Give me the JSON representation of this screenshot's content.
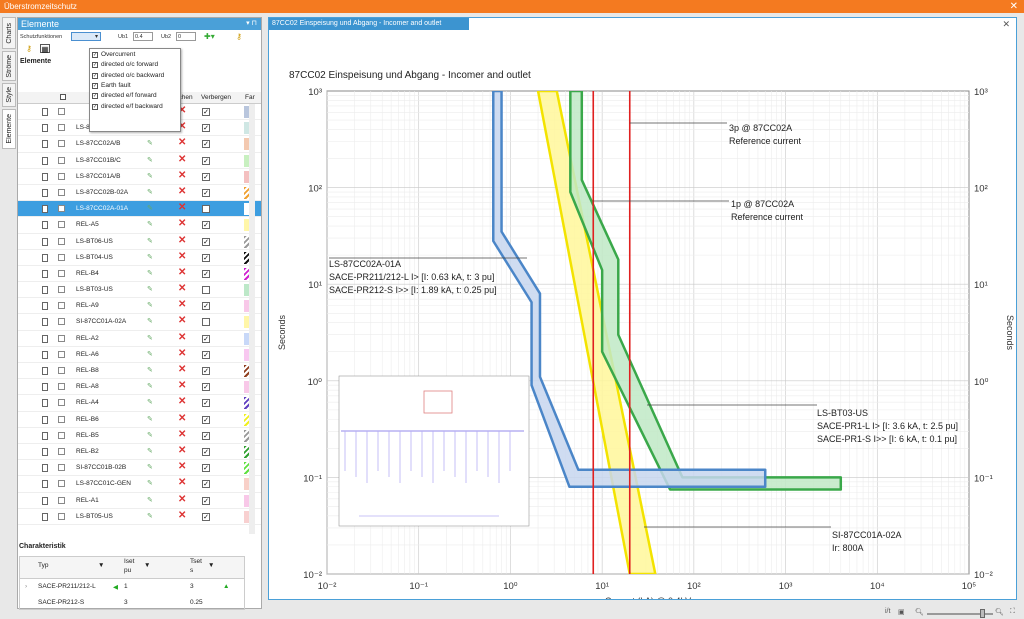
{
  "window": {
    "title": "Überstromzeitschutz"
  },
  "vtabs": [
    "Charts",
    "Ströme",
    "Style",
    "Elemente"
  ],
  "left": {
    "header": "Elemente",
    "schutz_label": "Schutzfunktionen",
    "ub1_label": "Ub1",
    "ub1_value": "0.4",
    "ub2_label": "Ub2",
    "ub2_value": "0",
    "section": "Elemente",
    "dropdown": [
      {
        "label": "Overcurrent",
        "checked": true
      },
      {
        "label": "directed o/c forward",
        "checked": true
      },
      {
        "label": "directed o/c backward",
        "checked": true
      },
      {
        "label": "Earth fault",
        "checked": true
      },
      {
        "label": "directed e/f forward",
        "checked": true
      },
      {
        "label": "directed e/f backward",
        "checked": true
      }
    ],
    "columns": {
      "loeschen": "Löschen",
      "verbergen": "Verbergen",
      "farbe": "Far"
    },
    "rows": [
      {
        "name": "",
        "hidden": true,
        "color": "#b9c6dd",
        "icon": "plug-icon"
      },
      {
        "name": "LS-87CC03A/B",
        "hidden": true,
        "color": "#cfe7e4"
      },
      {
        "name": "LS-87CC02A/B",
        "hidden": true,
        "color": "#f3c9b0"
      },
      {
        "name": "LS-87CC01B/C",
        "hidden": true,
        "color": "#c8f0c0"
      },
      {
        "name": "LS-87CC01A/B",
        "hidden": true,
        "color": "#f4c0c0"
      },
      {
        "name": "LS-87CC02B-02A",
        "hidden": true,
        "color": "hatch-orange"
      },
      {
        "name": "LS-87CC02A-01A",
        "hidden": false,
        "color": "#ffffff",
        "selected": true
      },
      {
        "name": "REL-A5",
        "hidden": true,
        "color": "#fff6a8"
      },
      {
        "name": "LS-BT06-US",
        "hidden": true,
        "color": "hatch-grey"
      },
      {
        "name": "LS-BT04-US",
        "hidden": true,
        "color": "hatch-black"
      },
      {
        "name": "REL-B4",
        "hidden": true,
        "color": "hatch-magenta"
      },
      {
        "name": "LS-BT03-US",
        "hidden": false,
        "color": "#bde8c8"
      },
      {
        "name": "REL-A9",
        "hidden": true,
        "color": "#f8c8e8"
      },
      {
        "name": "SI-87CC01A-02A",
        "hidden": false,
        "color": "#fff6a8"
      },
      {
        "name": "REL-A2",
        "hidden": true,
        "color": "#c8d8f8"
      },
      {
        "name": "REL-A6",
        "hidden": true,
        "color": "#f8c8f0"
      },
      {
        "name": "REL-B8",
        "hidden": true,
        "color": "hatch-brown"
      },
      {
        "name": "REL-A8",
        "hidden": true,
        "color": "#f8c8e8"
      },
      {
        "name": "REL-A4",
        "hidden": true,
        "color": "hatch-purple"
      },
      {
        "name": "REL-B6",
        "hidden": true,
        "color": "hatch-yellow"
      },
      {
        "name": "REL-B5",
        "hidden": true,
        "color": "hatch-grey"
      },
      {
        "name": "REL-B2",
        "hidden": true,
        "color": "hatch-green"
      },
      {
        "name": "SI-87CC01B-02B",
        "hidden": true,
        "color": "hatch-lime"
      },
      {
        "name": "LS-87CC01C-GEN",
        "hidden": true,
        "color": "#f8d0c8"
      },
      {
        "name": "REL-A1",
        "hidden": true,
        "color": "#f8c8e8"
      },
      {
        "name": "LS-BT05-US",
        "hidden": true,
        "color": "#f8d0d0"
      }
    ],
    "char": {
      "title": "Charakteristik",
      "col_typ": "Typ",
      "col_iset": "Iset",
      "col_iset_unit": "pu",
      "col_tset": "Tset",
      "col_tset_unit": "s",
      "rows": [
        {
          "typ": "SACE-PR211/212-L",
          "iset": "1",
          "tset": "3"
        },
        {
          "typ": "SACE-PR212-S",
          "iset": "3",
          "tset": "0.25"
        }
      ]
    }
  },
  "right": {
    "tab": "87CC02 Einspeisung und Abgang - Incomer and outlet",
    "chart_title": "87CC02 Einspeisung und Abgang - Incomer and outlet"
  },
  "chart_data": {
    "type": "line",
    "title": "87CC02 Einspeisung und Abgang - Incomer and outlet",
    "xlabel": "Current (kA) @ 0.4kV",
    "ylabel": "Seconds",
    "xscale": "log",
    "yscale": "log",
    "xlim": [
      0.01,
      100000
    ],
    "ylim": [
      0.01,
      1000
    ],
    "x_ticks": [
      "10⁻²",
      "10⁻¹",
      "10⁰",
      "10¹",
      "10²",
      "10³",
      "10⁴",
      "10⁵"
    ],
    "y_ticks": [
      "10³",
      "10²",
      "10¹",
      "10⁰",
      "10⁻¹",
      "10⁻²"
    ],
    "grid": true,
    "series": [
      {
        "color": "#4b86c8",
        "fill": "#c7d6ee",
        "upper": [
          [
            0.8,
            1000
          ],
          [
            0.8,
            35
          ],
          [
            2.1,
            8
          ],
          [
            2.1,
            1.1
          ],
          [
            5.5,
            0.12
          ],
          [
            600,
            0.12
          ]
        ],
        "lower": [
          [
            0.65,
            1000
          ],
          [
            0.65,
            28
          ],
          [
            1.7,
            6.5
          ],
          [
            1.7,
            0.9
          ],
          [
            4.4,
            0.08
          ],
          [
            600,
            0.08
          ]
        ]
      },
      {
        "color": "#3aa84a",
        "fill": "#bfe9c6",
        "upper": [
          [
            6,
            1000
          ],
          [
            6,
            120
          ],
          [
            15,
            18
          ],
          [
            15,
            3
          ],
          [
            75,
            0.1
          ],
          [
            4000,
            0.1
          ]
        ],
        "lower": [
          [
            4.5,
            1000
          ],
          [
            4.5,
            90
          ],
          [
            10,
            14
          ],
          [
            10,
            2
          ],
          [
            55,
            0.075
          ],
          [
            4000,
            0.075
          ]
        ]
      },
      {
        "color": "#f3e300",
        "fill": "#fff79a",
        "upper": [
          [
            3.2,
            1000
          ],
          [
            38,
            0.01
          ]
        ],
        "lower": [
          [
            2,
            1000
          ],
          [
            20,
            0.01
          ]
        ]
      },
      {
        "color": "#e02020",
        "vlines": [
          8,
          20
        ]
      }
    ],
    "annotations": [
      {
        "text": [
          "3p @ 87CC02A",
          "Reference current"
        ]
      },
      {
        "text": [
          "1p @ 87CC02A",
          "Reference current"
        ]
      },
      {
        "text": [
          "LS-87CC02A-01A",
          "SACE-PR211/212-L I> [I: 0.63 kA, t: 3 pu]",
          "SACE-PR212-S I>> [I: 1.89 kA, t: 0.25 pu]"
        ]
      },
      {
        "text": [
          "LS-BT03-US",
          "SACE-PR1-L I> [I: 3.6 kA, t: 2.5 pu]",
          "SACE-PR1-S I>> [I: 6 kA, t: 0.1 pu]"
        ]
      },
      {
        "text": [
          "SI-87CC01A-02A",
          "Ir: 800A"
        ]
      }
    ]
  }
}
